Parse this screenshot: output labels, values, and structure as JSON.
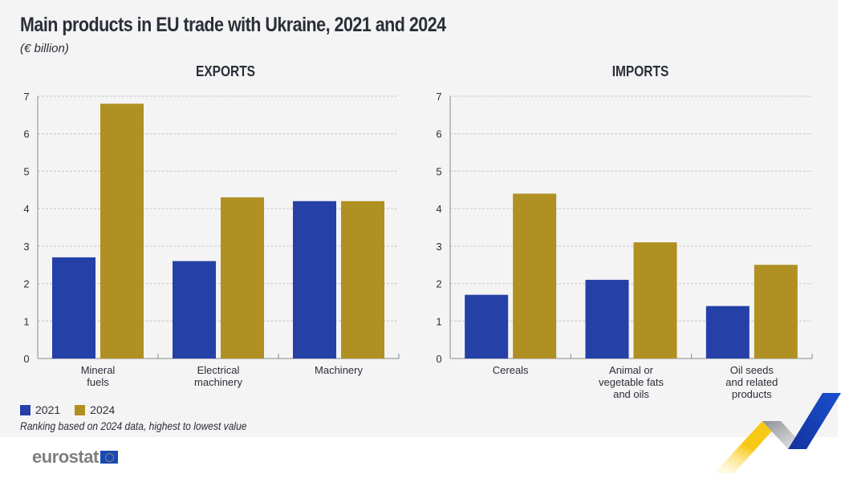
{
  "header": {
    "title": "Main products in EU trade with Ukraine, 2021 and 2024",
    "subtitle": "(€ billion)"
  },
  "legend": {
    "items": [
      {
        "label": "2021",
        "color": "#2541a8"
      },
      {
        "label": "2024",
        "color": "#b09022"
      }
    ]
  },
  "note": "Ranking based on 2024 data, highest to lowest value",
  "footer": {
    "logo_text": "eurostat",
    "flag_icon": "eu-flag-icon"
  },
  "colors": {
    "series_2021": "#2541a8",
    "series_2024": "#b09022",
    "axis": "#8a8a8a",
    "grid": "#c6c6c6",
    "text": "#2a2e38",
    "background": "#f4f4f4"
  },
  "chart_data": [
    {
      "type": "bar",
      "title": "EXPORTS",
      "xlabel": "",
      "ylabel": "€ billion",
      "ylim": [
        0,
        7
      ],
      "yticks": [
        0,
        1,
        2,
        3,
        4,
        5,
        6,
        7
      ],
      "grid": true,
      "categories": [
        [
          "Mineral",
          "fuels"
        ],
        [
          "Electrical",
          "machinery"
        ],
        [
          "Machinery"
        ]
      ],
      "series": [
        {
          "name": "2021",
          "values": [
            2.7,
            2.6,
            4.2
          ]
        },
        {
          "name": "2024",
          "values": [
            6.8,
            4.3,
            4.2
          ]
        }
      ],
      "legend": "bottom-left"
    },
    {
      "type": "bar",
      "title": "IMPORTS",
      "xlabel": "",
      "ylabel": "€ billion",
      "ylim": [
        0,
        7
      ],
      "yticks": [
        0,
        1,
        2,
        3,
        4,
        5,
        6,
        7
      ],
      "grid": true,
      "categories": [
        [
          "Cereals"
        ],
        [
          "Animal or",
          "vegetable fats",
          "and oils"
        ],
        [
          "Oil seeds",
          "and related",
          "products"
        ]
      ],
      "series": [
        {
          "name": "2021",
          "values": [
            1.7,
            2.1,
            1.4
          ]
        },
        {
          "name": "2024",
          "values": [
            4.4,
            3.1,
            2.5
          ]
        }
      ],
      "legend": "bottom-left"
    }
  ]
}
